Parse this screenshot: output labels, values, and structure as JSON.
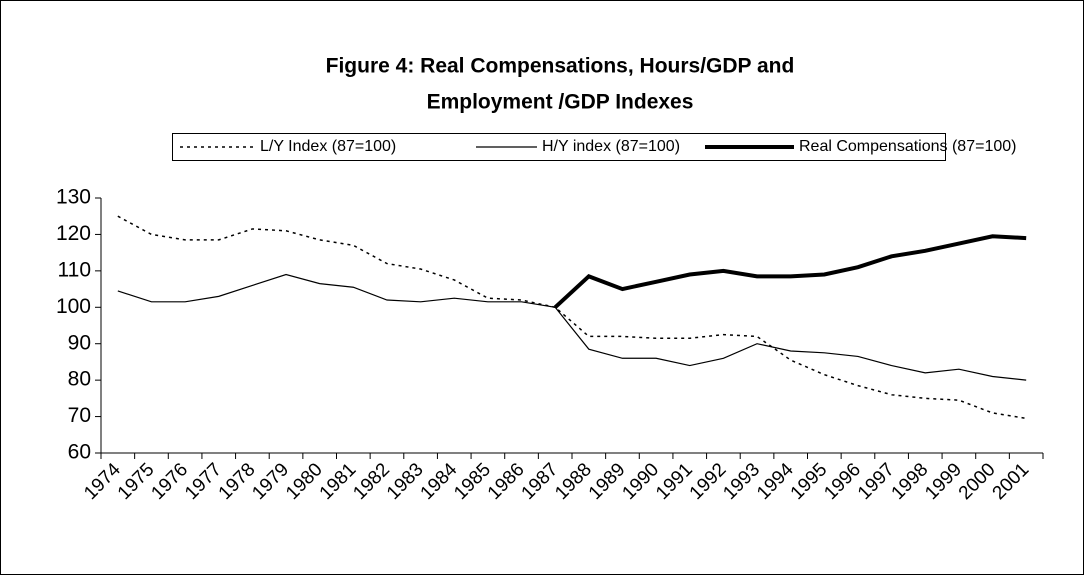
{
  "chart_data": {
    "type": "line",
    "title": [
      "Figure 4: Real Compensations, Hours/GDP and",
      "Employment /GDP Indexes"
    ],
    "categories": [
      "1974",
      "1975",
      "1976",
      "1977",
      "1978",
      "1979",
      "1980",
      "1981",
      "1982",
      "1983",
      "1984",
      "1985",
      "1986",
      "1987",
      "1988",
      "1989",
      "1990",
      "1991",
      "1992",
      "1993",
      "1994",
      "1995",
      "1996",
      "1997",
      "1998",
      "1999",
      "2000",
      "2001"
    ],
    "series": [
      {
        "name": "L/Y Index (87=100)",
        "color": "#000000",
        "line_style": "dotted",
        "line_width": 1.5,
        "values": [
          125,
          120,
          118.5,
          118.5,
          121.5,
          121,
          118.5,
          117,
          112,
          110.5,
          107.5,
          102.5,
          102,
          100,
          92,
          92,
          91.5,
          91.5,
          92.5,
          92,
          85.5,
          81.5,
          78.5,
          76,
          75,
          74.5,
          71,
          69.5
        ]
      },
      {
        "name": "H/Y index (87=100)",
        "color": "#000000",
        "line_style": "solid",
        "line_width": 1.2,
        "values": [
          104.5,
          101.5,
          101.5,
          103,
          106,
          109,
          106.5,
          105.5,
          102,
          101.5,
          102.5,
          101.5,
          101.5,
          100,
          88.5,
          86,
          86,
          84,
          86,
          90,
          88,
          87.5,
          86.5,
          84,
          82,
          83,
          81,
          80
        ]
      },
      {
        "name": "Real Compensations (87=100)",
        "color": "#000000",
        "line_style": "solid",
        "line_width": 4,
        "values": [
          null,
          null,
          null,
          null,
          null,
          null,
          null,
          null,
          null,
          null,
          null,
          null,
          null,
          100,
          108.5,
          105,
          107,
          109,
          110,
          108.5,
          108.5,
          109,
          111,
          114,
          115.5,
          117.5,
          119.5,
          119
        ]
      }
    ],
    "ylim": [
      60,
      130
    ],
    "yticks": [
      60,
      70,
      80,
      90,
      100,
      110,
      120,
      130
    ],
    "grid": false,
    "legend": "top"
  }
}
